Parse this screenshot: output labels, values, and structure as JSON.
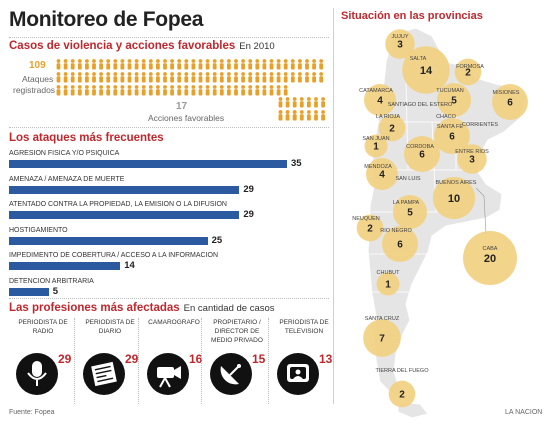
{
  "title": "Monitoreo de Fopea",
  "attacks_section": {
    "title": "Casos de violencia y acciones favorables",
    "subtitle": "En 2010",
    "attacks_value": "109",
    "attacks_label_1": "Ataques",
    "attacks_label_2": "registrados",
    "favorable_value": "17",
    "favorable_label": "Acciones favorables",
    "icon": "person-icon",
    "color_attacks": "#e9a02a",
    "color_favorable": "#e9a02a"
  },
  "frequent_section": {
    "title": "Los ataques más frecuentes"
  },
  "chart_data": {
    "type": "bar",
    "orientation": "horizontal",
    "categories": [
      "AGRESION FISICA Y/O PSIQUICA",
      "AMENAZA / AMENAZA DE MUERTE",
      "ATENTADO CONTRA LA PROPIEDAD, LA EMISION O LA DIFUSION",
      "HOSTIGAMIENTO",
      "IMPEDIMENTO DE COBERTURA / ACCESO A LA INFORMACION",
      "DETENCION ARBITRARIA"
    ],
    "values": [
      35,
      29,
      29,
      25,
      14,
      5
    ],
    "value_labels": [
      "35",
      "29",
      "29",
      "25",
      "14",
      "5"
    ],
    "color": "#2c5aa0"
  },
  "professions": {
    "title": "Las profesiones más afectadas",
    "subtitle": "En cantidad de casos",
    "items": [
      {
        "label": "PERIODISTA DE RADIO",
        "value": "29",
        "icon": "microphone-icon"
      },
      {
        "label": "PERIODISTA DE DIARIO",
        "value": "29",
        "icon": "newspaper-icon"
      },
      {
        "label": "CAMAROGRAFO",
        "value": "16",
        "icon": "video-camera-icon"
      },
      {
        "label": "PROPIETARIO / DIRECTOR DE MEDIO PRIVADO",
        "value": "15",
        "icon": "satellite-dish-icon"
      },
      {
        "label": "PERIODISTA DE TELEVISION",
        "value": "13",
        "icon": "television-icon"
      }
    ]
  },
  "map": {
    "title": "Situación en las provincias",
    "bubble_color": "#f2cf7e",
    "provinces": [
      {
        "name": "JUJUY",
        "value": "3"
      },
      {
        "name": "SALTA",
        "value": "14"
      },
      {
        "name": "FORMOSA",
        "value": "2"
      },
      {
        "name": "CATAMARCA",
        "value": "4"
      },
      {
        "name": "TUCUMAN",
        "value": "5"
      },
      {
        "name": "MISIONES",
        "value": "6"
      },
      {
        "name": "LA RIOJA",
        "value": "2"
      },
      {
        "name": "SANTIAGO DEL ESTERO",
        "value": ""
      },
      {
        "name": "SAN JUAN",
        "value": "1"
      },
      {
        "name": "SANTA FE",
        "value": "6"
      },
      {
        "name": "CORRIENTES",
        "value": ""
      },
      {
        "name": "CHACO",
        "value": ""
      },
      {
        "name": "CORDOBA",
        "value": "6"
      },
      {
        "name": "ENTRE RIOS",
        "value": "3"
      },
      {
        "name": "MENDOZA",
        "value": "4"
      },
      {
        "name": "SAN LUIS",
        "value": ""
      },
      {
        "name": "BUENOS AIRES",
        "value": "10"
      },
      {
        "name": "LA PAMPA",
        "value": "5"
      },
      {
        "name": "NEUQUEN",
        "value": "2"
      },
      {
        "name": "RIO NEGRO",
        "value": "6"
      },
      {
        "name": "CABA",
        "value": "20"
      },
      {
        "name": "CHUBUT",
        "value": "1"
      },
      {
        "name": "SANTA CRUZ",
        "value": "7"
      },
      {
        "name": "TIERRA DEL FUEGO",
        "value": "2"
      }
    ]
  },
  "footer": {
    "source": "Fuente: Fopea",
    "credit": "LA NACION"
  }
}
